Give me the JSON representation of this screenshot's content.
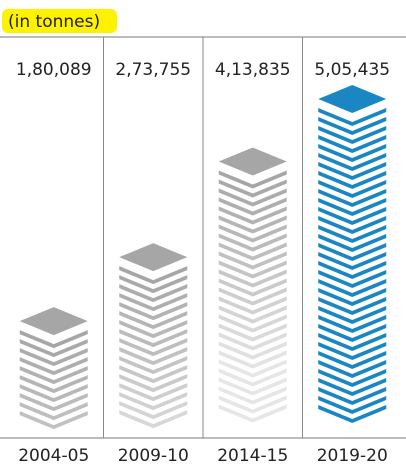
{
  "chart_data": {
    "type": "bar",
    "unit_label": "(in tonnes)",
    "categories": [
      "2004-05",
      "2009-10",
      "2014-15",
      "2019-20"
    ],
    "values": [
      180089,
      273755,
      413835,
      505435
    ],
    "value_labels": [
      "1,80,089",
      "2,73,755",
      "4,13,835",
      "5,05,435"
    ],
    "colors": [
      "#a6a6a6",
      "#a6a6a6",
      "#a6a6a6",
      "#1a86c4"
    ]
  }
}
